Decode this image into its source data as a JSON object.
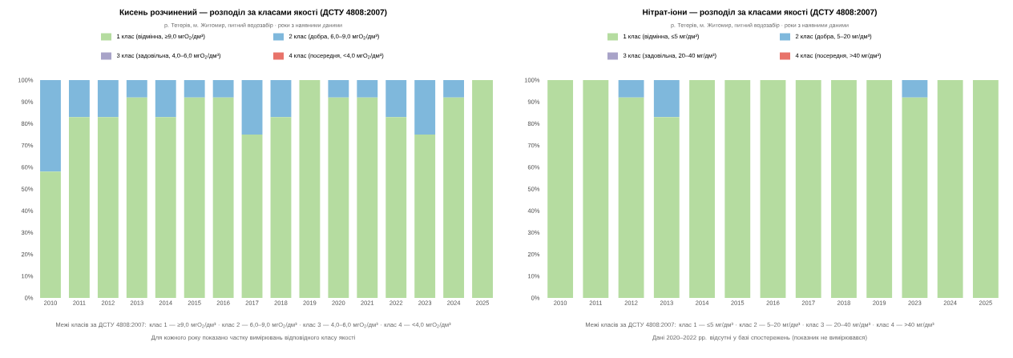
{
  "chart_data": [
    {
      "type": "bar",
      "stacked": true,
      "legend": "top",
      "title": "Кисень розчинений — розподіл за класами якості (ДСТУ 4808:2007)",
      "subtitle": "р. Тетерів, м. Житомир, питний водозабір · роки з наявними даними",
      "categories": [
        "2010",
        "2011",
        "2012",
        "2013",
        "2014",
        "2015",
        "2016",
        "2017",
        "2018",
        "2019",
        "2020",
        "2021",
        "2022",
        "2023",
        "2024",
        "2025"
      ],
      "ylim": [
        0,
        100
      ],
      "yticks": [
        {
          "value": 0,
          "label": "0%"
        },
        {
          "value": 10,
          "label": "10%"
        },
        {
          "value": 20,
          "label": "20%"
        },
        {
          "value": 30,
          "label": "30%"
        },
        {
          "value": 40,
          "label": "40%"
        },
        {
          "value": 50,
          "label": "50%"
        },
        {
          "value": 60,
          "label": "60%"
        },
        {
          "value": 70,
          "label": "70%"
        },
        {
          "value": 80,
          "label": "80%"
        },
        {
          "value": 90,
          "label": "90%"
        },
        {
          "value": 100,
          "label": "100%"
        }
      ],
      "series": [
        {
          "name": "1 клас (відмінна, ≥9,0 мгO$_{2}$/дм³)",
          "color": "#b5dca0",
          "values": [
            58,
            83,
            83,
            92,
            83,
            92,
            92,
            75,
            83,
            100,
            92,
            92,
            83,
            75,
            92,
            100
          ]
        },
        {
          "name": "2 клас (добра, 6,0–9,0 мгO$_{2}$/дм³)",
          "color": "#7fb8dc",
          "values": [
            42,
            17,
            17,
            8,
            17,
            8,
            8,
            25,
            17,
            0,
            8,
            8,
            17,
            25,
            8,
            0
          ]
        },
        {
          "name": "3 клас (задовільна, 4,0–6,0 мгO$_{2}$/дм³)",
          "color": "#a8a3c8",
          "values": [
            0,
            0,
            0,
            0,
            0,
            0,
            0,
            0,
            0,
            0,
            0,
            0,
            0,
            0,
            0,
            0
          ]
        },
        {
          "name": "4 клас (посередня, <4,0 мгO$_{2}$/дм³)",
          "color": "#e8736a",
          "values": [
            0,
            0,
            0,
            0,
            0,
            0,
            0,
            0,
            0,
            0,
            0,
            0,
            0,
            0,
            0,
            0
          ]
        }
      ],
      "annotations": [
        "Межі класів за ДСТУ 4808:2007: клас 1 — ≥9,0 мгO$_{2}$/дм³ · клас 2 — 6,0–9,0 мгO$_{2}$/дм³ · клас 3 — 4,0–6,0 мгO$_{2}$/дм³ · клас 4 — <4,0 мгO$_{2}$/дм³",
        "Для кожного року показано частку вимірювань відповідного класу якості"
      ]
    },
    {
      "type": "bar",
      "stacked": true,
      "legend": "top",
      "title": "Нітрат-іони — розподіл за класами якості (ДСТУ 4808:2007)",
      "subtitle": "р. Тетерів, м. Житомир, питний водозабір · роки з наявними даними",
      "categories": [
        "2010",
        "2011",
        "2012",
        "2013",
        "2014",
        "2015",
        "2016",
        "2017",
        "2018",
        "2019",
        "2023",
        "2024",
        "2025"
      ],
      "ylim": [
        0,
        100
      ],
      "yticks": [
        {
          "value": 0,
          "label": "0%"
        },
        {
          "value": 10,
          "label": "10%"
        },
        {
          "value": 20,
          "label": "20%"
        },
        {
          "value": 30,
          "label": "30%"
        },
        {
          "value": 40,
          "label": "40%"
        },
        {
          "value": 50,
          "label": "50%"
        },
        {
          "value": 60,
          "label": "60%"
        },
        {
          "value": 70,
          "label": "70%"
        },
        {
          "value": 80,
          "label": "80%"
        },
        {
          "value": 90,
          "label": "90%"
        },
        {
          "value": 100,
          "label": "100%"
        }
      ],
      "series": [
        {
          "name": "1 клас (відмінна, ≤5 мг/дм³)",
          "color": "#b5dca0",
          "values": [
            100,
            100,
            92,
            83,
            100,
            100,
            100,
            100,
            100,
            100,
            92,
            100,
            100
          ]
        },
        {
          "name": "2 клас (добра, 5–20 мг/дм³)",
          "color": "#7fb8dc",
          "values": [
            0,
            0,
            8,
            17,
            0,
            0,
            0,
            0,
            0,
            0,
            8,
            0,
            0
          ]
        },
        {
          "name": "3 клас (задовільна, 20–40 мг/дм³)",
          "color": "#a8a3c8",
          "values": [
            0,
            0,
            0,
            0,
            0,
            0,
            0,
            0,
            0,
            0,
            0,
            0,
            0
          ]
        },
        {
          "name": "4 клас (посередня, >40 мг/дм³)",
          "color": "#e8736a",
          "values": [
            0,
            0,
            0,
            0,
            0,
            0,
            0,
            0,
            0,
            0,
            0,
            0,
            0
          ]
        }
      ],
      "annotations": [
        "Межі класів за ДСТУ 4808:2007: клас 1 — ≤5 мг/дм³ · клас 2 — 5–20 мг/дм³ · клас 3 — 20–40 мг/дм³ · клас 4 — >40 мг/дм³",
        "Дані 2020–2022 рр. відсутні у базі спостережень (показник не вимірювався)"
      ]
    }
  ]
}
